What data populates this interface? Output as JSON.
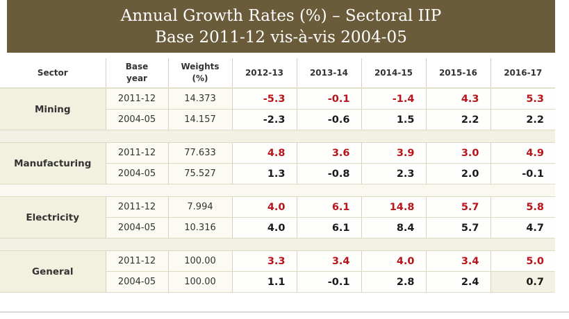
{
  "title": {
    "line1": "Annual Growth Rates (%) – Sectoral IIP",
    "line2": "Base 2011-12 vis-à-vis 2004-05"
  },
  "table": {
    "headers": [
      "Sector",
      "Base year",
      "Weights (%)",
      "2012-13",
      "2013-14",
      "2014-15",
      "2015-16",
      "2016-17"
    ],
    "header_base": [
      "Base",
      "year"
    ],
    "header_weights": [
      "Weights",
      "(%)"
    ],
    "sectors": [
      {
        "name": "Mining",
        "rows": [
          {
            "year": "2011-12",
            "weight": "14.373",
            "values": [
              "-5.3",
              "-0.1",
              "-1.4",
              "4.3",
              "5.3"
            ]
          },
          {
            "year": "2004-05",
            "weight": "14.157",
            "values": [
              "-2.3",
              "-0.6",
              "1.5",
              "2.2",
              "2.2"
            ]
          }
        ]
      },
      {
        "name": "Manufacturing",
        "rows": [
          {
            "year": "2011-12",
            "weight": "77.633",
            "values": [
              "4.8",
              "3.6",
              "3.9",
              "3.0",
              "4.9"
            ]
          },
          {
            "year": "2004-05",
            "weight": "75.527",
            "values": [
              "1.3",
              "-0.8",
              "2.3",
              "2.0",
              "-0.1"
            ]
          }
        ]
      },
      {
        "name": "Electricity",
        "rows": [
          {
            "year": "2011-12",
            "weight": "7.994",
            "values": [
              "4.0",
              "6.1",
              "14.8",
              "5.7",
              "5.8"
            ]
          },
          {
            "year": "2004-05",
            "weight": "10.316",
            "values": [
              "4.0",
              "6.1",
              "8.4",
              "5.7",
              "4.7"
            ]
          }
        ]
      },
      {
        "name": "General",
        "rows": [
          {
            "year": "2011-12",
            "weight": "100.00",
            "values": [
              "3.3",
              "3.4",
              "4.0",
              "3.4",
              "5.0"
            ]
          },
          {
            "year": "2004-05",
            "weight": "100.00",
            "values": [
              "1.1",
              "-0.1",
              "2.8",
              "2.4",
              "0.7"
            ]
          }
        ]
      }
    ]
  },
  "colors": {
    "title_bg": "#6a5b3a",
    "highlight_red": "#b8141c",
    "sector_bg": "#f2f0df"
  }
}
